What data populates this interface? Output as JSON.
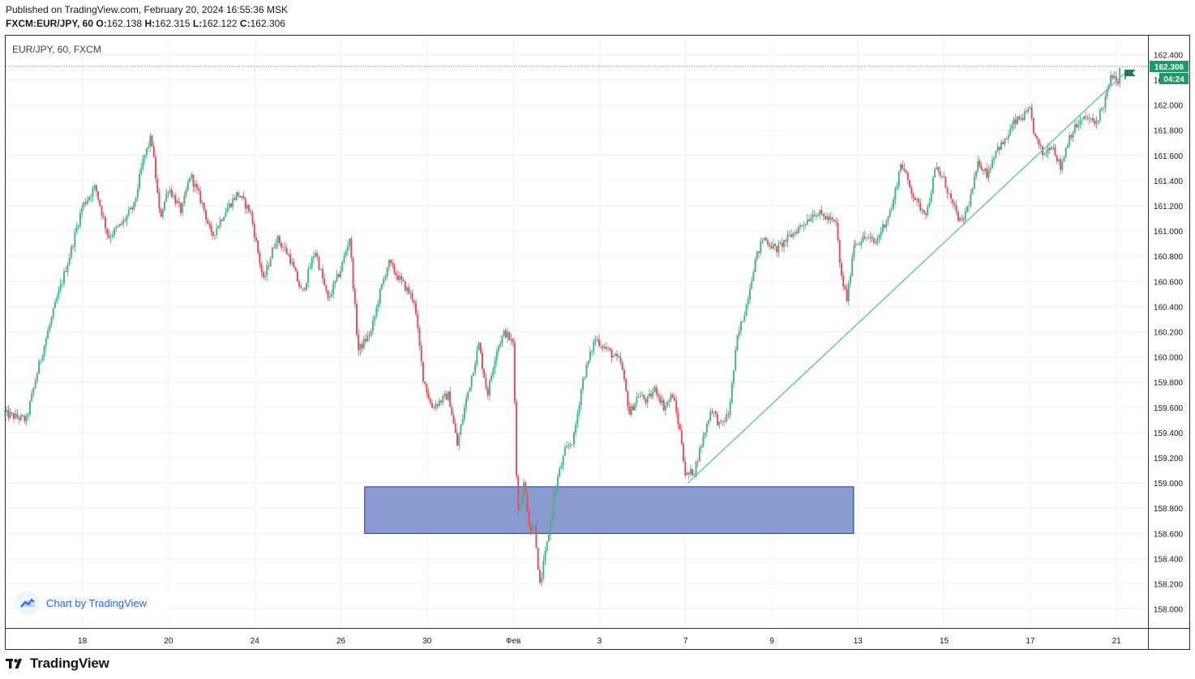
{
  "header": {
    "published": "Published on TradingView.com, February 20, 2024 16:55:36 MSK",
    "symbol": "FXCM:EUR/JPY, 60",
    "o_label": "O:",
    "o": "162.138",
    "h_label": "H:",
    "h": "162.315",
    "l_label": "L:",
    "l": "162.122",
    "c_label": "C:",
    "c": "162.306"
  },
  "chart_title": "EUR/JPY, 60, FXCM",
  "watermark": "Chart by TradingView",
  "footer_brand": "TradingView",
  "colors": {
    "up": "#26a69a",
    "up_body": "#4fb37f",
    "down": "#ef5350",
    "down_body": "#e0505f",
    "grid": "#eef0f3",
    "last_price": "#1f9a64",
    "trendline": "#6cc5b0",
    "zone_fill": "#8a9bd0",
    "zone_border": "#1d3a8a"
  },
  "chart_data": {
    "type": "candlestick",
    "title": "EUR/JPY, 60, FXCM",
    "interval": "60",
    "y_ticks": [
      "158.000",
      "158.200",
      "158.400",
      "158.600",
      "158.800",
      "159.000",
      "159.200",
      "159.400",
      "159.600",
      "159.800",
      "160.000",
      "160.200",
      "160.400",
      "160.600",
      "160.800",
      "161.000",
      "161.200",
      "161.400",
      "161.600",
      "161.800",
      "162.000",
      "162.200",
      "162.400"
    ],
    "ylim": [
      157.85,
      162.55
    ],
    "x_ticks": [
      {
        "label": "18",
        "day": 18
      },
      {
        "label": "20",
        "day": 20
      },
      {
        "label": "24",
        "day": 22
      },
      {
        "label": "26",
        "day": 24
      },
      {
        "label": "30",
        "day": 26
      },
      {
        "label": "Фев",
        "day": 28
      },
      {
        "label": "3",
        "day": 30
      },
      {
        "label": "7",
        "day": 32
      },
      {
        "label": "9",
        "day": 34
      },
      {
        "label": "13",
        "day": 36
      },
      {
        "label": "15",
        "day": 38
      },
      {
        "label": "17",
        "day": 40
      },
      {
        "label": "21",
        "day": 42
      }
    ],
    "xlim": [
      16.22,
      42.73
    ],
    "last_price": "162.306",
    "countdown": "04:24",
    "price_path": [
      [
        16.2,
        159.55
      ],
      [
        16.7,
        159.5
      ],
      [
        17.0,
        159.95
      ],
      [
        17.4,
        160.45
      ],
      [
        17.7,
        160.8
      ],
      [
        18.0,
        161.2
      ],
      [
        18.3,
        161.35
      ],
      [
        18.6,
        160.95
      ],
      [
        18.9,
        161.05
      ],
      [
        19.2,
        161.2
      ],
      [
        19.4,
        161.55
      ],
      [
        19.6,
        161.75
      ],
      [
        19.8,
        161.1
      ],
      [
        20.0,
        161.35
      ],
      [
        20.3,
        161.15
      ],
      [
        20.5,
        161.45
      ],
      [
        20.8,
        161.2
      ],
      [
        21.0,
        160.95
      ],
      [
        21.3,
        161.15
      ],
      [
        21.6,
        161.3
      ],
      [
        21.9,
        161.15
      ],
      [
        22.2,
        160.6
      ],
      [
        22.5,
        160.95
      ],
      [
        22.8,
        160.8
      ],
      [
        23.1,
        160.5
      ],
      [
        23.4,
        160.85
      ],
      [
        23.7,
        160.45
      ],
      [
        24.0,
        160.7
      ],
      [
        24.2,
        160.95
      ],
      [
        24.4,
        160.05
      ],
      [
        24.7,
        160.2
      ],
      [
        24.9,
        160.5
      ],
      [
        25.1,
        160.75
      ],
      [
        25.4,
        160.6
      ],
      [
        25.7,
        160.45
      ],
      [
        25.9,
        159.85
      ],
      [
        26.1,
        159.6
      ],
      [
        26.5,
        159.7
      ],
      [
        26.7,
        159.3
      ],
      [
        26.9,
        159.65
      ],
      [
        27.2,
        160.1
      ],
      [
        27.4,
        159.7
      ],
      [
        27.6,
        160.05
      ],
      [
        27.8,
        160.2
      ],
      [
        28.0,
        160.1
      ],
      [
        28.1,
        158.75
      ],
      [
        28.25,
        159.0
      ],
      [
        28.4,
        158.6
      ],
      [
        28.5,
        158.7
      ],
      [
        28.6,
        158.15
      ],
      [
        28.8,
        158.55
      ],
      [
        29.0,
        159.0
      ],
      [
        29.2,
        159.25
      ],
      [
        29.4,
        159.35
      ],
      [
        29.6,
        159.8
      ],
      [
        29.9,
        160.15
      ],
      [
        30.2,
        160.05
      ],
      [
        30.5,
        159.95
      ],
      [
        30.7,
        159.55
      ],
      [
        30.9,
        159.7
      ],
      [
        31.1,
        159.65
      ],
      [
        31.3,
        159.75
      ],
      [
        31.5,
        159.6
      ],
      [
        31.7,
        159.7
      ],
      [
        31.9,
        159.35
      ],
      [
        32.0,
        159.05
      ],
      [
        32.2,
        159.1
      ],
      [
        32.4,
        159.35
      ],
      [
        32.6,
        159.6
      ],
      [
        32.8,
        159.45
      ],
      [
        33.0,
        159.55
      ],
      [
        33.2,
        160.15
      ],
      [
        33.4,
        160.4
      ],
      [
        33.6,
        160.75
      ],
      [
        33.8,
        160.95
      ],
      [
        34.1,
        160.85
      ],
      [
        34.4,
        160.95
      ],
      [
        34.7,
        161.05
      ],
      [
        35.0,
        161.15
      ],
      [
        35.3,
        161.1
      ],
      [
        35.5,
        161.05
      ],
      [
        35.6,
        160.65
      ],
      [
        35.75,
        160.45
      ],
      [
        35.9,
        160.9
      ],
      [
        36.2,
        160.95
      ],
      [
        36.4,
        160.9
      ],
      [
        36.6,
        161.05
      ],
      [
        36.8,
        161.2
      ],
      [
        37.0,
        161.55
      ],
      [
        37.2,
        161.35
      ],
      [
        37.4,
        161.2
      ],
      [
        37.6,
        161.15
      ],
      [
        37.8,
        161.5
      ],
      [
        38.0,
        161.4
      ],
      [
        38.2,
        161.2
      ],
      [
        38.4,
        161.05
      ],
      [
        38.6,
        161.25
      ],
      [
        38.8,
        161.55
      ],
      [
        39.0,
        161.45
      ],
      [
        39.2,
        161.65
      ],
      [
        39.4,
        161.7
      ],
      [
        39.6,
        161.85
      ],
      [
        39.8,
        161.9
      ],
      [
        40.0,
        161.95
      ],
      [
        40.1,
        161.75
      ],
      [
        40.3,
        161.6
      ],
      [
        40.5,
        161.7
      ],
      [
        40.7,
        161.5
      ],
      [
        40.9,
        161.75
      ],
      [
        41.1,
        161.85
      ],
      [
        41.3,
        161.9
      ],
      [
        41.5,
        161.85
      ],
      [
        41.7,
        162.0
      ],
      [
        41.9,
        162.25
      ],
      [
        42.0,
        162.15
      ],
      [
        42.1,
        162.306
      ]
    ],
    "trendline": [
      [
        32.05,
        159.0
      ],
      [
        42.18,
        162.25
      ]
    ],
    "zone": {
      "day_start": 24.55,
      "day_end": 35.9,
      "price_high": 158.97,
      "price_low": 158.6
    }
  }
}
